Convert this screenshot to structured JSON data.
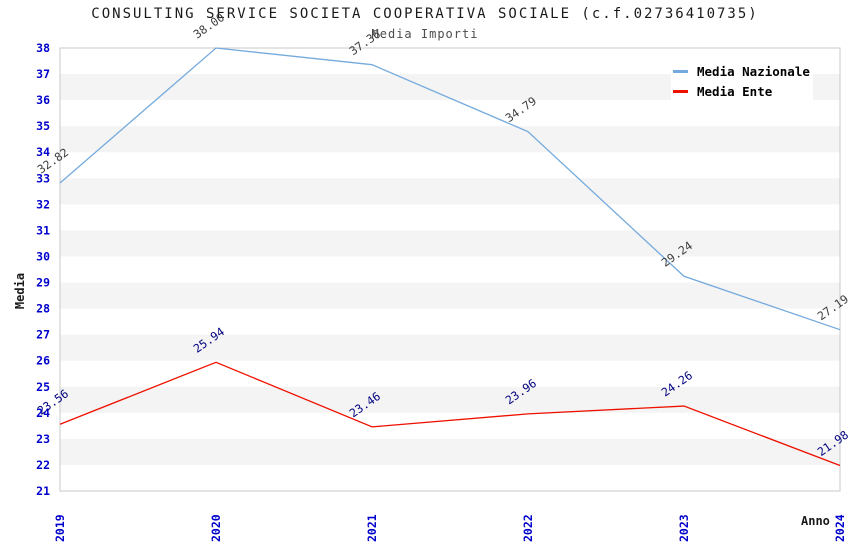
{
  "title": "CONSULTING SERVICE SOCIETA COOPERATIVA SOCIALE (c.f.02736410735)",
  "subtitle": "Media Importi",
  "chart_data": {
    "type": "line",
    "categories": [
      "2019",
      "2020",
      "2021",
      "2022",
      "2023",
      "2024"
    ],
    "series": [
      {
        "name": "Media Nazionale",
        "color": "#74aadd",
        "label_color": "#3d3d3d",
        "values": [
          32.82,
          38.0,
          37.36,
          34.79,
          29.24,
          27.19
        ]
      },
      {
        "name": "Media Ente",
        "color": "#ee1100",
        "label_color": "#000080",
        "values": [
          23.56,
          25.94,
          23.46,
          23.96,
          24.26,
          21.98
        ]
      }
    ],
    "title": "CONSULTING SERVICE SOCIETA COOPERATIVA SOCIALE (c.f.02736410735)",
    "subtitle": "Media Importi",
    "xlabel": "Anno",
    "ylabel": "Media",
    "ylim": [
      21,
      38
    ],
    "y_tick_step": 1,
    "grid": "horizontal-bands",
    "band_color": "#f4f4f4",
    "plot_border_color": "#c9c9c9",
    "tick_color": "#0000cc",
    "legend_position": "top-right"
  }
}
